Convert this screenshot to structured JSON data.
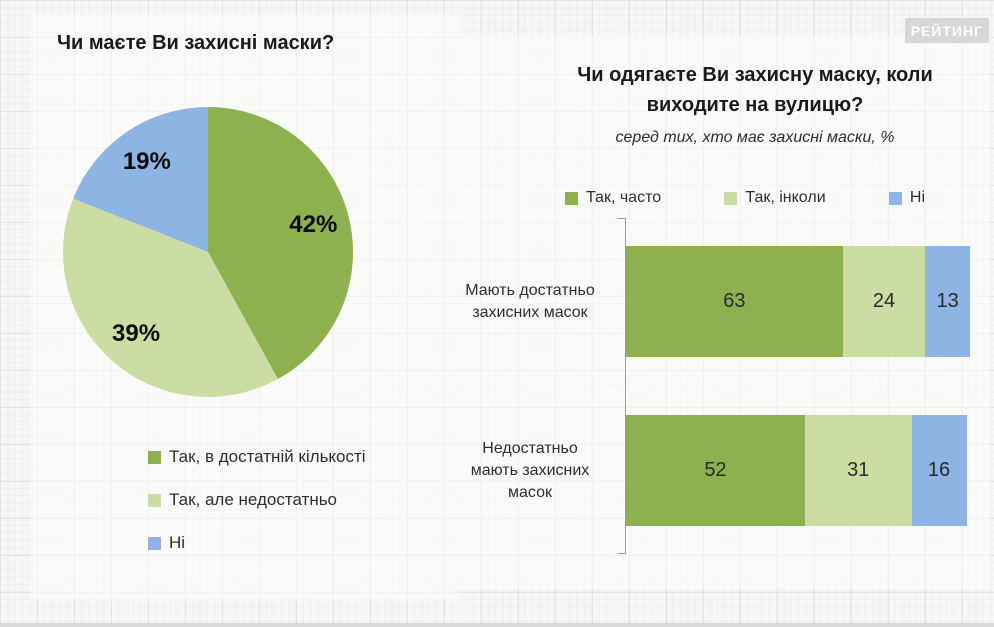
{
  "logo": {
    "text": "РЕЙТИНГ"
  },
  "colors": {
    "dark_green": "#8DB14F",
    "light_green": "#CBDDA3",
    "blue": "#8DB4E2"
  },
  "chart_data": [
    {
      "type": "pie",
      "title": "Чи маєте Ви захисні маски?",
      "labels": [
        "Так, в достатній кількості",
        "Так, але недостатньо",
        "Ні"
      ],
      "values": [
        42,
        39,
        19
      ],
      "value_labels": [
        "42%",
        "39%",
        "19%"
      ],
      "colors": [
        "#8DB14F",
        "#CBDDA3",
        "#8DB4E2"
      ],
      "start_angle_deg_from_top_clockwise": 0,
      "legend_position": "bottom-left"
    },
    {
      "type": "bar",
      "orientation": "horizontal-stacked",
      "title": "Чи одягаєте Ви захисну маску, коли виходите на вулицю?",
      "subtitle": "серед тих, хто має захисні маски, %",
      "categories": [
        "Мають достатньо захисних масок",
        "Недостатньо мають захисних масок"
      ],
      "series": [
        {
          "name": "Так, часто",
          "color": "#8DB14F",
          "values": [
            63,
            52
          ]
        },
        {
          "name": "Так, інколи",
          "color": "#CBDDA3",
          "values": [
            24,
            31
          ]
        },
        {
          "name": "Ні",
          "color": "#8DB4E2",
          "values": [
            13,
            16
          ]
        }
      ],
      "xlim": [
        0,
        100
      ],
      "legend_position": "top",
      "grid": false
    }
  ]
}
